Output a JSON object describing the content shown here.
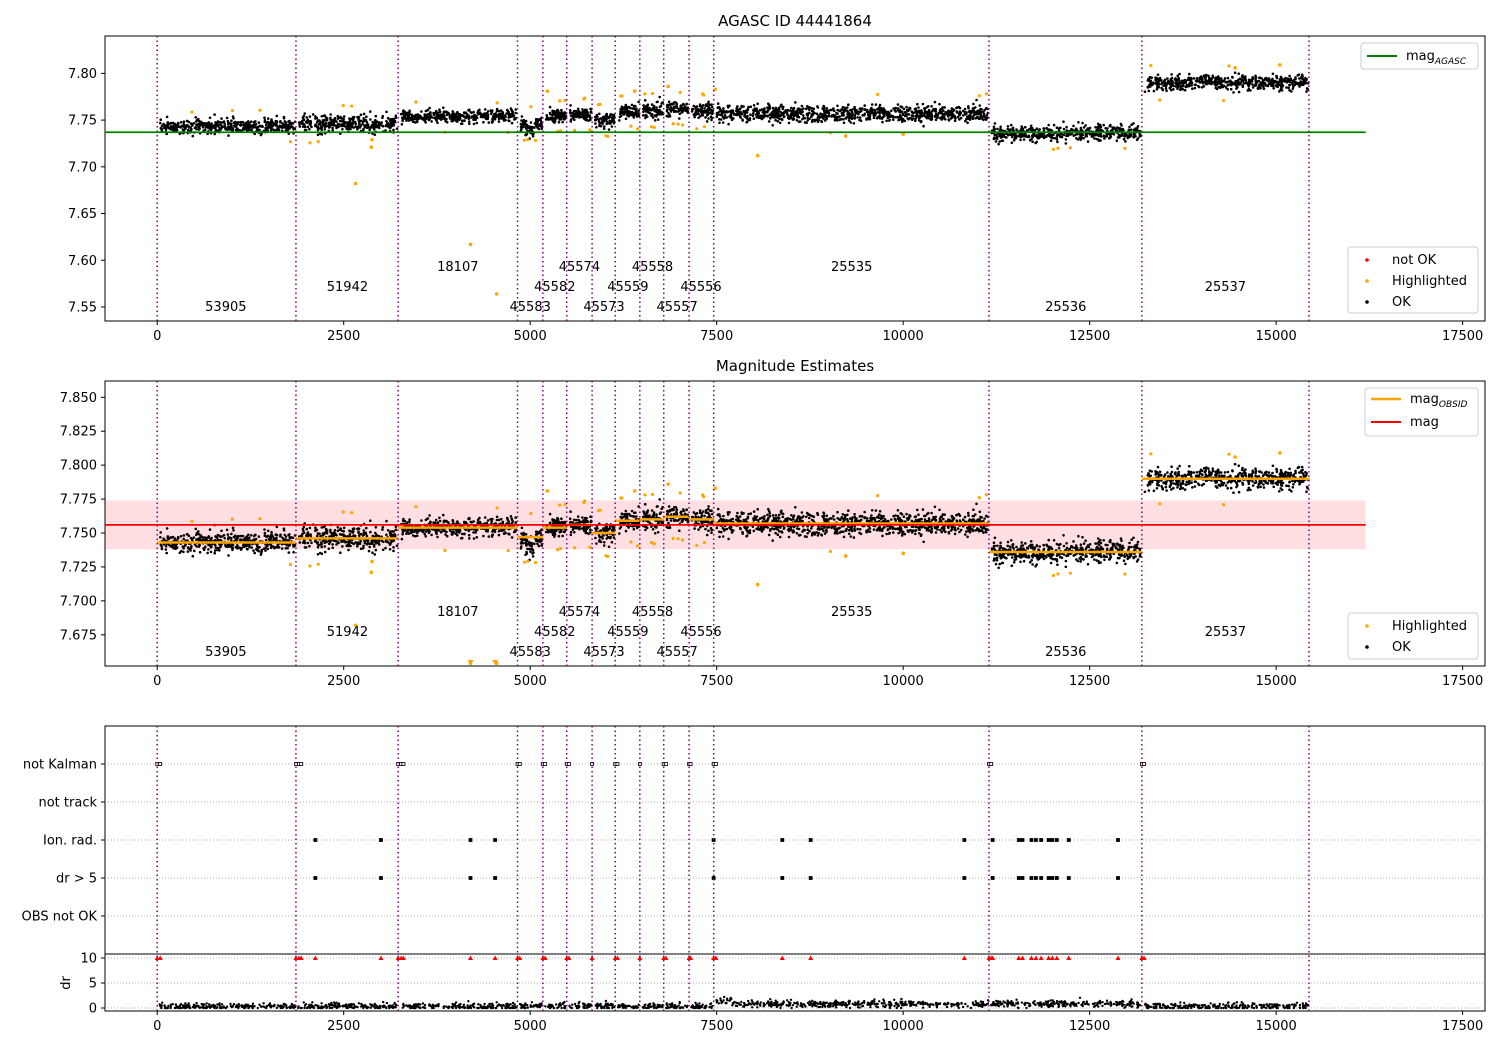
{
  "chart_data": [
    {
      "type": "scatter",
      "title": "AGASC ID 44441864",
      "xlabel": "",
      "ylabel": "",
      "xlim": [
        -700,
        17800
      ],
      "ylim": [
        7.535,
        7.84
      ],
      "xticks": [
        0,
        2500,
        5000,
        7500,
        10000,
        12500,
        15000,
        17500
      ],
      "xtick_labels": [
        "0",
        "2500",
        "5000",
        "7500",
        "10000",
        "12500",
        "15000",
        "17500"
      ],
      "yticks": [
        7.55,
        7.6,
        7.65,
        7.7,
        7.75,
        7.8
      ],
      "ytick_labels": [
        "7.55",
        "7.60",
        "7.65",
        "7.70",
        "7.75",
        "7.80"
      ],
      "reference_lines": [
        {
          "name": "mag_AGASC",
          "y": 7.737,
          "x": [
            -700,
            16200
          ],
          "color": "#008000"
        }
      ],
      "series": [
        {
          "name": "not OK",
          "color": "#ff0000"
        },
        {
          "name": "Highlighted",
          "color": "#ffa500"
        },
        {
          "name": "OK",
          "color": "#000000"
        }
      ],
      "observations": [
        {
          "obsid": "53905",
          "start": 0,
          "end": 1860,
          "mag": 7.743,
          "spread": 0.007,
          "label_row": 0,
          "label_x": 920
        },
        {
          "obsid": "51942",
          "start": 1860,
          "end": 3230,
          "mag": 7.746,
          "spread": 0.008,
          "label_row": 1,
          "label_x": 2550
        },
        {
          "obsid": "18107",
          "start": 3230,
          "end": 4830,
          "mag": 7.754,
          "spread": 0.006,
          "label_row": 2,
          "label_x": 4030
        },
        {
          "obsid": "45583",
          "start": 4830,
          "end": 5170,
          "mag": 7.747,
          "spread": 0.007,
          "label_row": 0,
          "label_x": 5000
        },
        {
          "obsid": "45582",
          "start": 5170,
          "end": 5490,
          "mag": 7.754,
          "spread": 0.007,
          "label_row": 1,
          "label_x": 5330
        },
        {
          "obsid": "45574",
          "start": 5490,
          "end": 5830,
          "mag": 7.756,
          "spread": 0.007,
          "label_row": 2,
          "label_x": 5660
        },
        {
          "obsid": "45573",
          "start": 5830,
          "end": 6140,
          "mag": 7.75,
          "spread": 0.007,
          "label_row": 0,
          "label_x": 5990
        },
        {
          "obsid": "45559",
          "start": 6140,
          "end": 6470,
          "mag": 7.759,
          "spread": 0.007,
          "label_row": 1,
          "label_x": 6310
        },
        {
          "obsid": "45558",
          "start": 6470,
          "end": 6790,
          "mag": 7.76,
          "spread": 0.007,
          "label_row": 2,
          "label_x": 6640
        },
        {
          "obsid": "45557",
          "start": 6790,
          "end": 7130,
          "mag": 7.762,
          "spread": 0.007,
          "label_row": 0,
          "label_x": 6970
        },
        {
          "obsid": "45556",
          "start": 7130,
          "end": 7460,
          "mag": 7.76,
          "spread": 0.007,
          "label_row": 1,
          "label_x": 7290
        },
        {
          "obsid": "25535",
          "start": 7460,
          "end": 11150,
          "mag": 7.757,
          "spread": 0.008,
          "label_row": 2,
          "label_x": 9310
        },
        {
          "obsid": "25536",
          "start": 11150,
          "end": 13200,
          "mag": 7.736,
          "spread": 0.007,
          "label_row": 0,
          "label_x": 12180
        },
        {
          "obsid": "25537",
          "start": 13200,
          "end": 15440,
          "mag": 7.79,
          "spread": 0.007,
          "label_row": 1,
          "label_x": 14320
        }
      ],
      "highlighted_points": [
        {
          "x": 2660,
          "y": 7.682
        },
        {
          "x": 2870,
          "y": 7.721
        },
        {
          "x": 2880,
          "y": 7.729
        },
        {
          "x": 4200,
          "y": 7.617
        },
        {
          "x": 4550,
          "y": 7.564
        },
        {
          "x": 8050,
          "y": 7.712
        },
        {
          "x": 9230,
          "y": 7.733
        },
        {
          "x": 10000,
          "y": 7.735
        },
        {
          "x": 5230,
          "y": 7.781
        },
        {
          "x": 6400,
          "y": 7.781
        },
        {
          "x": 6850,
          "y": 7.786
        },
        {
          "x": 7480,
          "y": 7.783
        },
        {
          "x": 14450,
          "y": 7.806
        },
        {
          "x": 15050,
          "y": 7.809
        }
      ],
      "legend_position": "top-right + lower-right"
    },
    {
      "type": "scatter",
      "title": "Magnitude Estimates",
      "xlabel": "",
      "ylabel": "",
      "xlim": [
        -700,
        17800
      ],
      "ylim": [
        7.652,
        7.862
      ],
      "xticks": [
        0,
        2500,
        5000,
        7500,
        10000,
        12500,
        15000,
        17500
      ],
      "xtick_labels": [
        "0",
        "2500",
        "5000",
        "7500",
        "10000",
        "12500",
        "15000",
        "17500"
      ],
      "yticks": [
        7.675,
        7.7,
        7.725,
        7.75,
        7.775,
        7.8,
        7.825,
        7.85
      ],
      "ytick_labels": [
        "7.675",
        "7.700",
        "7.725",
        "7.750",
        "7.775",
        "7.800",
        "7.825",
        "7.850"
      ],
      "reference_lines": [
        {
          "name": "mag",
          "y": 7.756,
          "x": [
            -700,
            16200
          ],
          "color": "#ff0000"
        }
      ],
      "band": {
        "y": [
          7.738,
          7.774
        ],
        "x": [
          -700,
          16200
        ],
        "color": "#ffdfe2"
      },
      "series": [
        {
          "name": "mag_OBSID",
          "color": "#ffa500"
        },
        {
          "name": "Highlighted",
          "color": "#ffa500"
        },
        {
          "name": "OK",
          "color": "#000000"
        }
      ]
    },
    {
      "type": "scatter",
      "title": "",
      "xlabel": "",
      "ylabel": "dr",
      "xlim": [
        -700,
        17800
      ],
      "xticks": [
        0,
        2500,
        5000,
        7500,
        10000,
        12500,
        15000,
        17500
      ],
      "xtick_labels": [
        "0",
        "2500",
        "5000",
        "7500",
        "10000",
        "12500",
        "15000",
        "17500"
      ],
      "flag_rows": [
        "not Kalman",
        "not track",
        "Ion. rad.",
        "dr > 5",
        "OBS not OK"
      ],
      "dr_ylim": [
        -0.5,
        10.5
      ],
      "dr_yticks": [
        0,
        5,
        10
      ],
      "dr_ytick_labels": [
        "0",
        "5",
        "10"
      ],
      "flags": {
        "not Kalman": [
          0,
          40,
          1860,
          1900,
          1930,
          3230,
          3270,
          3300,
          4830,
          4860,
          5170,
          5200,
          5490,
          5520,
          5830,
          6140,
          6170,
          6470,
          6790,
          6820,
          7130,
          7150,
          7460,
          7490,
          11150,
          11180,
          13200,
          13230
        ],
        "Ion. rad.": [
          2120,
          3000,
          4200,
          4530,
          7460,
          8380,
          8760,
          10820,
          11200,
          11550,
          11600,
          11720,
          11780,
          11850,
          11950,
          12000,
          12060,
          12220,
          12880
        ],
        "dr > 5": [
          2120,
          3000,
          4200,
          4530,
          7460,
          8380,
          8760,
          10820,
          11200,
          11550,
          11600,
          11720,
          11780,
          11850,
          11950,
          12000,
          12060,
          12220,
          12880
        ]
      },
      "dr_points_color": "#000000",
      "dr_flag_marks_color": "#ff0000"
    }
  ]
}
